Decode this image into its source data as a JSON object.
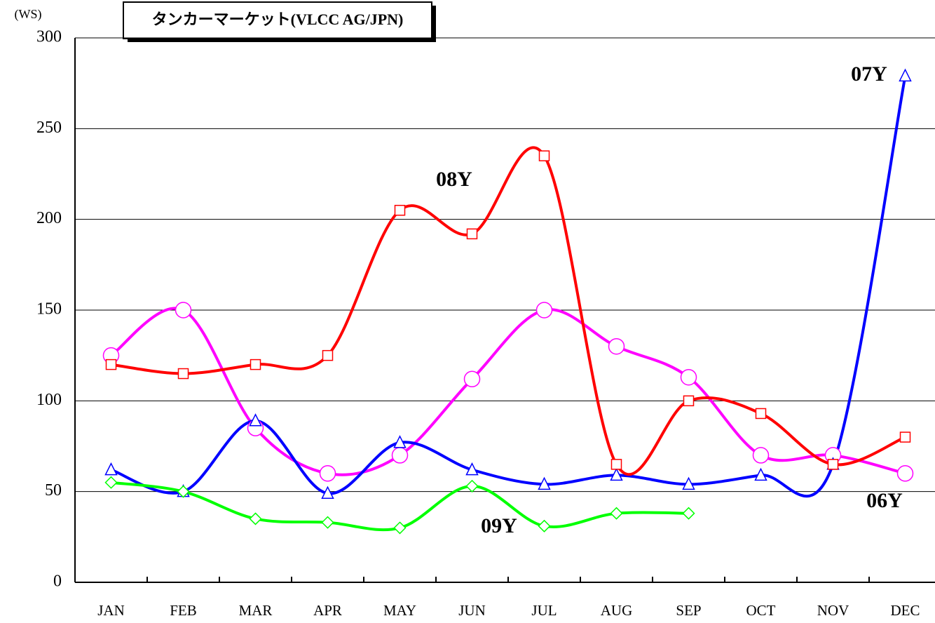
{
  "chart_data": {
    "type": "line",
    "title": "タンカーマーケット(VLCC AG/JPN)",
    "y_label": "(WS)",
    "categories": [
      "JAN",
      "FEB",
      "MAR",
      "APR",
      "MAY",
      "JUN",
      "JUL",
      "AUG",
      "SEP",
      "OCT",
      "NOV",
      "DEC"
    ],
    "series": [
      {
        "name": "06Y",
        "color": "#ff00ff",
        "marker": "circle",
        "values": [
          125,
          150,
          85,
          60,
          70,
          112,
          150,
          130,
          113,
          70,
          70,
          60
        ]
      },
      {
        "name": "07Y",
        "color": "#0000ff",
        "marker": "triangle",
        "values": [
          62,
          50,
          89,
          49,
          77,
          62,
          54,
          59,
          54,
          59,
          65,
          279
        ]
      },
      {
        "name": "08Y",
        "color": "#ff0000",
        "marker": "square",
        "values": [
          120,
          115,
          120,
          125,
          205,
          192,
          235,
          65,
          100,
          93,
          65,
          80
        ]
      },
      {
        "name": "09Y",
        "color": "#00ff00",
        "marker": "diamond",
        "values": [
          55,
          50,
          35,
          33,
          30,
          53,
          31,
          38,
          38,
          null,
          null,
          null
        ]
      }
    ],
    "ylim": [
      0,
      300
    ],
    "yticks": [
      0,
      50,
      100,
      150,
      200,
      250,
      300
    ],
    "grid": true
  }
}
